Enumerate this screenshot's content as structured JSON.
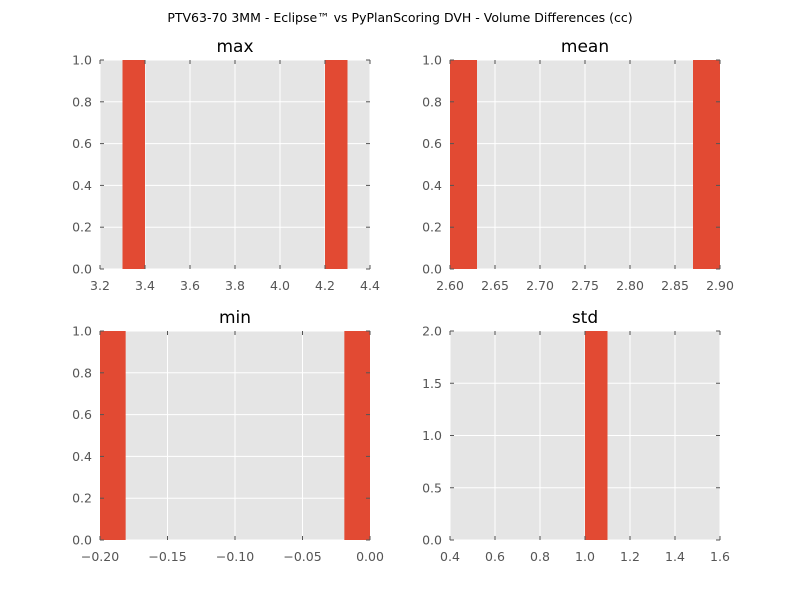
{
  "figure": {
    "suptitle": "PTV63-70 3MM - Eclipse™ vs PyPlanScoring DVH - Volume Differences (cc)"
  },
  "style": {
    "bar_color": "#e24a33",
    "axes_facecolor": "#e5e5e5",
    "grid_color": "#ffffff",
    "tick_color": "#555555"
  },
  "chart_data": [
    {
      "type": "bar",
      "title": "max",
      "xlim": [
        3.2,
        4.4
      ],
      "ylim": [
        0.0,
        1.0
      ],
      "xticks": [
        "3.2",
        "3.4",
        "3.6",
        "3.8",
        "4.0",
        "4.2",
        "4.4"
      ],
      "yticks": [
        "0.0",
        "0.2",
        "0.4",
        "0.6",
        "0.8",
        "1.0"
      ],
      "grid": true,
      "bins": [
        {
          "x0": 3.3,
          "x1": 3.4,
          "count": 1
        },
        {
          "x0": 4.2,
          "x1": 4.3,
          "count": 1
        }
      ]
    },
    {
      "type": "bar",
      "title": "mean",
      "xlim": [
        2.6,
        2.9
      ],
      "ylim": [
        0.0,
        1.0
      ],
      "xticks": [
        "2.60",
        "2.65",
        "2.70",
        "2.75",
        "2.80",
        "2.85",
        "2.90"
      ],
      "yticks": [
        "0.0",
        "0.2",
        "0.4",
        "0.6",
        "0.8",
        "1.0"
      ],
      "grid": true,
      "bins": [
        {
          "x0": 2.6,
          "x1": 2.63,
          "count": 1
        },
        {
          "x0": 2.87,
          "x1": 2.9,
          "count": 1
        }
      ]
    },
    {
      "type": "bar",
      "title": "min",
      "xlim": [
        -0.2,
        0.0
      ],
      "ylim": [
        0.0,
        1.0
      ],
      "xticks": [
        "−0.20",
        "−0.15",
        "−0.10",
        "−0.05",
        "0.00"
      ],
      "yticks": [
        "0.0",
        "0.2",
        "0.4",
        "0.6",
        "0.8",
        "1.0"
      ],
      "grid": true,
      "bins": [
        {
          "x0": -0.2,
          "x1": -0.181,
          "count": 1
        },
        {
          "x0": -0.019,
          "x1": 0.0,
          "count": 1
        }
      ]
    },
    {
      "type": "bar",
      "title": "std",
      "xlim": [
        0.4,
        1.6
      ],
      "ylim": [
        0.0,
        2.0
      ],
      "xticks": [
        "0.4",
        "0.6",
        "0.8",
        "1.0",
        "1.2",
        "1.4",
        "1.6"
      ],
      "yticks": [
        "0.0",
        "0.5",
        "1.0",
        "1.5",
        "2.0"
      ],
      "grid": true,
      "bins": [
        {
          "x0": 1.0,
          "x1": 1.1,
          "count": 2
        }
      ]
    }
  ]
}
